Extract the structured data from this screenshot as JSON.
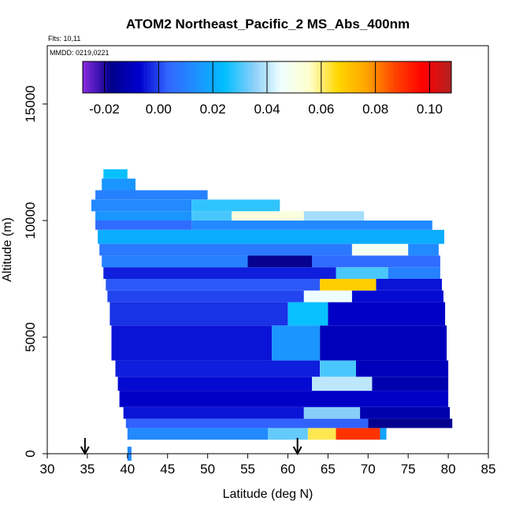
{
  "chart_data": {
    "type": "heatmap",
    "title": "ATOM2 Northeast_Pacific_2 MS_Abs_400nm",
    "flights_note": "Flts: 10,11",
    "dates_note": "MMDD: 0219,0221",
    "xlabel": "Latitude (deg N)",
    "ylabel": "Altitude (m)",
    "xlim": [
      30,
      85
    ],
    "ylim": [
      0,
      17500
    ],
    "x_ticks": [
      30,
      35,
      40,
      45,
      50,
      55,
      60,
      65,
      70,
      75,
      80,
      85
    ],
    "y_ticks": [
      0,
      5000,
      10000,
      15000
    ],
    "colorbar": {
      "range": [
        -0.028,
        0.108
      ],
      "ticks": [
        -0.02,
        0.0,
        0.02,
        0.04,
        0.06,
        0.08,
        0.1
      ],
      "tick_labels": [
        "-0.02",
        "0.00",
        "0.02",
        "0.04",
        "0.06",
        "0.08",
        "0.10"
      ],
      "colors": [
        "#8a2be2",
        "#00008b",
        "#0000cd",
        "#3366ff",
        "#1e90ff",
        "#00bfff",
        "#87cefa",
        "#f0ffff",
        "#ffffcc",
        "#ffd700",
        "#ffa500",
        "#ff4500",
        "#ff0000",
        "#b22222"
      ]
    },
    "markers": {
      "description": "downward arrows",
      "latitudes": [
        34.7,
        61.2
      ]
    },
    "bands": [
      {
        "alt": [
          600,
          1100
        ],
        "lat": [
          40.0,
          72.3
        ],
        "segments": [
          {
            "lat": [
              40.0,
              57.5
            ],
            "value": 0.012
          },
          {
            "lat": [
              57.5,
              62.5
            ],
            "value": 0.032
          },
          {
            "lat": [
              62.5,
              66.0
            ],
            "value": 0.062
          },
          {
            "lat": [
              66.0,
              71.5
            ],
            "value": 0.09
          },
          {
            "lat": [
              71.5,
              72.3
            ],
            "value": 0.018
          }
        ]
      },
      {
        "alt": [
          1100,
          1500
        ],
        "lat": [
          39.8,
          80.5
        ],
        "segments": [
          {
            "lat": [
              39.8,
              70.0
            ],
            "value": 0.003
          },
          {
            "lat": [
              70.0,
              80.5
            ],
            "value": -0.018
          }
        ]
      },
      {
        "alt": [
          1500,
          2000
        ],
        "lat": [
          39.5,
          80.2
        ],
        "segments": [
          {
            "lat": [
              39.5,
              62.0
            ],
            "value": -0.005
          },
          {
            "lat": [
              62.0,
              69.0
            ],
            "value": 0.035
          },
          {
            "lat": [
              69.0,
              80.2
            ],
            "value": -0.012
          }
        ]
      },
      {
        "alt": [
          2000,
          2700
        ],
        "lat": [
          39.0,
          80.0
        ],
        "segments": [
          {
            "lat": [
              39.0,
              80.0
            ],
            "value": -0.008
          }
        ]
      },
      {
        "alt": [
          2700,
          3300
        ],
        "lat": [
          38.8,
          80.0
        ],
        "segments": [
          {
            "lat": [
              38.8,
              63.0
            ],
            "value": -0.006
          },
          {
            "lat": [
              63.0,
              70.5
            ],
            "value": 0.04
          },
          {
            "lat": [
              70.5,
              80.0
            ],
            "value": -0.012
          }
        ]
      },
      {
        "alt": [
          3300,
          4000
        ],
        "lat": [
          38.5,
          80.0
        ],
        "segments": [
          {
            "lat": [
              38.5,
              64.0
            ],
            "value": -0.004
          },
          {
            "lat": [
              64.0,
              68.5
            ],
            "value": 0.03
          },
          {
            "lat": [
              68.5,
              80.0
            ],
            "value": -0.01
          }
        ]
      },
      {
        "alt": [
          4000,
          5500
        ],
        "lat": [
          38.0,
          79.8
        ],
        "segments": [
          {
            "lat": [
              38.0,
              58.0
            ],
            "value": -0.005
          },
          {
            "lat": [
              58.0,
              64.0
            ],
            "value": 0.015
          },
          {
            "lat": [
              64.0,
              79.8
            ],
            "value": -0.01
          }
        ]
      },
      {
        "alt": [
          5500,
          6500
        ],
        "lat": [
          37.8,
          79.6
        ],
        "segments": [
          {
            "lat": [
              37.8,
              60.0
            ],
            "value": -0.002
          },
          {
            "lat": [
              60.0,
              65.0
            ],
            "value": 0.025
          },
          {
            "lat": [
              65.0,
              79.6
            ],
            "value": -0.008
          }
        ]
      },
      {
        "alt": [
          6500,
          7000
        ],
        "lat": [
          37.5,
          79.4
        ],
        "segments": [
          {
            "lat": [
              37.5,
              62.0
            ],
            "value": 0.0
          },
          {
            "lat": [
              62.0,
              68.0
            ],
            "value": 0.045
          },
          {
            "lat": [
              68.0,
              79.4
            ],
            "value": -0.006
          }
        ]
      },
      {
        "alt": [
          7000,
          7500
        ],
        "lat": [
          37.3,
          79.2
        ],
        "segments": [
          {
            "lat": [
              37.3,
              64.0
            ],
            "value": 0.002
          },
          {
            "lat": [
              64.0,
              71.0
            ],
            "value": 0.068
          },
          {
            "lat": [
              71.0,
              79.2
            ],
            "value": -0.005
          }
        ]
      },
      {
        "alt": [
          7500,
          8000
        ],
        "lat": [
          37.0,
          79.0
        ],
        "segments": [
          {
            "lat": [
              37.0,
              66.0
            ],
            "value": -0.004
          },
          {
            "lat": [
              66.0,
              72.5
            ],
            "value": 0.03
          },
          {
            "lat": [
              72.5,
              79.0
            ],
            "value": 0.01
          }
        ]
      },
      {
        "alt": [
          8000,
          8500
        ],
        "lat": [
          36.8,
          79.0
        ],
        "segments": [
          {
            "lat": [
              36.8,
              55.0
            ],
            "value": 0.01
          },
          {
            "lat": [
              55.0,
              63.0
            ],
            "value": -0.018
          },
          {
            "lat": [
              63.0,
              79.0
            ],
            "value": 0.005
          }
        ]
      },
      {
        "alt": [
          8500,
          9000
        ],
        "lat": [
          36.5,
          78.8
        ],
        "segments": [
          {
            "lat": [
              36.5,
              68.0
            ],
            "value": 0.008
          },
          {
            "lat": [
              68.0,
              75.0
            ],
            "value": 0.048
          },
          {
            "lat": [
              75.0,
              78.8
            ],
            "value": 0.012
          }
        ]
      },
      {
        "alt": [
          9000,
          9600
        ],
        "lat": [
          36.3,
          79.5
        ],
        "segments": [
          {
            "lat": [
              36.3,
              79.5
            ],
            "value": 0.02
          }
        ]
      },
      {
        "alt": [
          9600,
          10000
        ],
        "lat": [
          36.0,
          78.0
        ],
        "segments": [
          {
            "lat": [
              36.0,
              48.0
            ],
            "value": 0.005
          },
          {
            "lat": [
              48.0,
              78.0
            ],
            "value": 0.012
          }
        ]
      },
      {
        "alt": [
          10000,
          10400
        ],
        "lat": [
          36.0,
          69.5
        ],
        "segments": [
          {
            "lat": [
              36.0,
              48.0
            ],
            "value": 0.015
          },
          {
            "lat": [
              48.0,
              53.0
            ],
            "value": 0.03
          },
          {
            "lat": [
              53.0,
              62.0
            ],
            "value": 0.052
          },
          {
            "lat": [
              62.0,
              69.5
            ],
            "value": 0.038
          }
        ]
      },
      {
        "alt": [
          10400,
          10900
        ],
        "lat": [
          35.5,
          59.0
        ],
        "segments": [
          {
            "lat": [
              35.5,
              48.0
            ],
            "value": 0.012
          },
          {
            "lat": [
              48.0,
              59.0
            ],
            "value": 0.028
          }
        ]
      },
      {
        "alt": [
          10900,
          11300
        ],
        "lat": [
          36.0,
          50.0
        ],
        "segments": [
          {
            "lat": [
              36.0,
              50.0
            ],
            "value": 0.01
          }
        ]
      },
      {
        "alt": [
          11300,
          11800
        ],
        "lat": [
          36.8,
          41.0
        ],
        "segments": [
          {
            "lat": [
              36.8,
              41.0
            ],
            "value": 0.015
          }
        ]
      },
      {
        "alt": [
          11800,
          12200
        ],
        "lat": [
          37.0,
          40.0
        ],
        "segments": [
          {
            "lat": [
              37.0,
              40.0
            ],
            "value": 0.025
          }
        ]
      },
      {
        "alt": [
          -300,
          300
        ],
        "lat": [
          40.0,
          40.5
        ],
        "segments": [
          {
            "lat": [
              40.0,
              40.5
            ],
            "value": 0.012
          }
        ]
      }
    ]
  }
}
